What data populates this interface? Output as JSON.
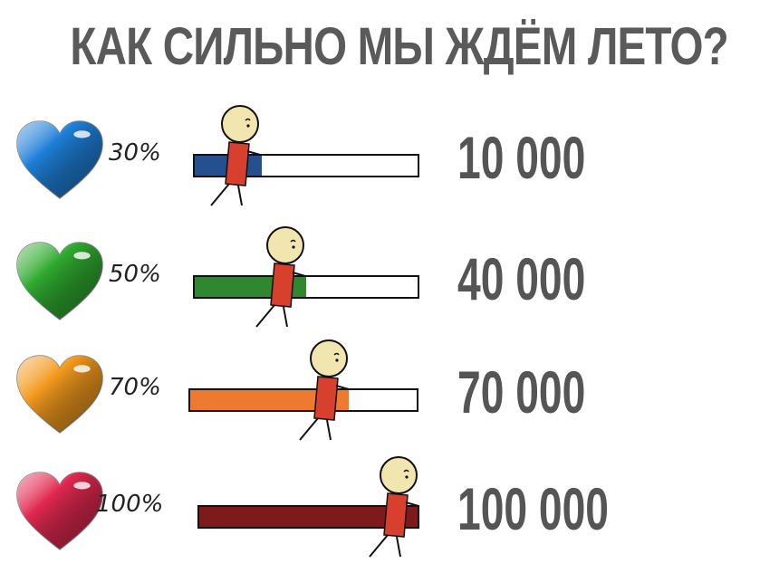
{
  "title": "КАК СИЛЬНО МЫ ЖДЁМ ЛЕТО?",
  "rows": [
    {
      "percent_label": "30%",
      "progress": 30,
      "value": "10 000",
      "heart_color": "#1e7fd8",
      "bar_color": "#24508f"
    },
    {
      "percent_label": "50%",
      "progress": 50,
      "value": "40 000",
      "heart_color": "#2faa2f",
      "bar_color": "#2f872f"
    },
    {
      "percent_label": "70%",
      "progress": 70,
      "value": "70 000",
      "heart_color": "#f39a1c",
      "bar_color": "#ee7a30"
    },
    {
      "percent_label": "100%",
      "progress": 100,
      "value": "100 000",
      "heart_color": "#e0284f",
      "bar_color": "#7f1a1c"
    }
  ]
}
